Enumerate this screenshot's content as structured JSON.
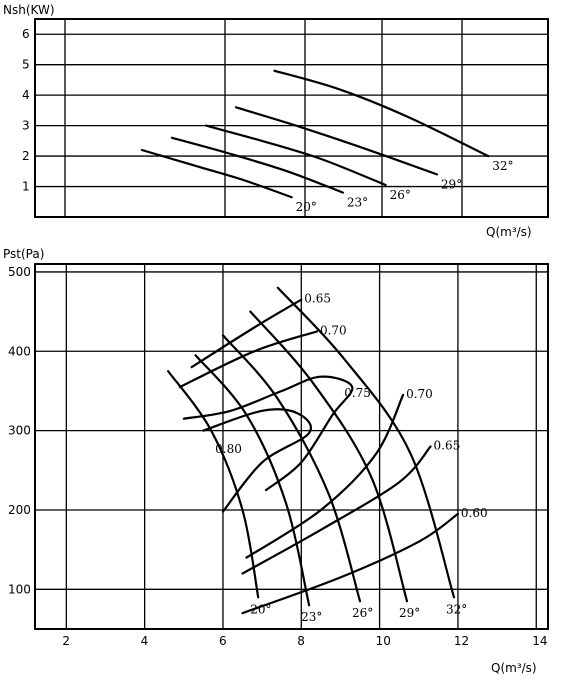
{
  "chart_data": [
    {
      "type": "line",
      "title": "",
      "ylabel": "Nsh(KW)",
      "xlabel": "Q(m³/s)",
      "xlim": [
        2,
        14
      ],
      "ylim": [
        0,
        6.5
      ],
      "x_ticks": [],
      "y_ticks": [
        "1",
        "2",
        "3",
        "4",
        "5",
        "6"
      ],
      "grid": true,
      "series": [
        {
          "name": "20°",
          "points": [
            [
              3.8,
              2.2
            ],
            [
              5.0,
              1.7
            ],
            [
              6.2,
              1.2
            ],
            [
              7.3,
              0.65
            ]
          ]
        },
        {
          "name": "23°",
          "points": [
            [
              4.5,
              2.6
            ],
            [
              5.8,
              2.1
            ],
            [
              7.2,
              1.5
            ],
            [
              8.5,
              0.8
            ]
          ]
        },
        {
          "name": "26°",
          "points": [
            [
              5.3,
              3.0
            ],
            [
              6.6,
              2.5
            ],
            [
              8.0,
              1.9
            ],
            [
              9.5,
              1.05
            ]
          ]
        },
        {
          "name": "29°",
          "points": [
            [
              6.0,
              3.6
            ],
            [
              7.4,
              3.0
            ],
            [
              8.9,
              2.3
            ],
            [
              10.7,
              1.4
            ]
          ]
        },
        {
          "name": "32°",
          "points": [
            [
              6.9,
              4.8
            ],
            [
              8.4,
              4.2
            ],
            [
              10.0,
              3.3
            ],
            [
              11.9,
              2.0
            ]
          ]
        }
      ]
    },
    {
      "type": "line",
      "title": "",
      "ylabel": "Pst(Pa)",
      "xlabel": "Q(m³/s)",
      "xlim": [
        1.2,
        14.3
      ],
      "ylim": [
        50,
        510
      ],
      "x_ticks": [
        "2",
        "4",
        "6",
        "8",
        "10",
        "12",
        "14"
      ],
      "y_ticks": [
        "100",
        "200",
        "300",
        "400",
        "500"
      ],
      "grid": true,
      "blade_curves": [
        {
          "name": "20°",
          "points": [
            [
              4.6,
              375
            ],
            [
              5.7,
              300
            ],
            [
              6.5,
              200
            ],
            [
              6.9,
              90
            ]
          ]
        },
        {
          "name": "23°",
          "points": [
            [
              5.3,
              395
            ],
            [
              6.6,
              320
            ],
            [
              7.6,
              210
            ],
            [
              8.2,
              80
            ]
          ]
        },
        {
          "name": "26°",
          "points": [
            [
              6.0,
              420
            ],
            [
              7.4,
              340
            ],
            [
              8.7,
              220
            ],
            [
              9.5,
              85
            ]
          ]
        },
        {
          "name": "29°",
          "points": [
            [
              6.7,
              450
            ],
            [
              8.3,
              360
            ],
            [
              9.8,
              240
            ],
            [
              10.7,
              85
            ]
          ]
        },
        {
          "name": "32°",
          "points": [
            [
              7.4,
              480
            ],
            [
              9.1,
              390
            ],
            [
              10.8,
              270
            ],
            [
              11.9,
              90
            ]
          ]
        }
      ],
      "efficiency_curves": [
        {
          "name": "0.65",
          "points": [
            [
              5.2,
              380
            ],
            [
              6.8,
              430
            ],
            [
              8.0,
              465
            ]
          ]
        },
        {
          "name": "0.70",
          "points": [
            [
              4.9,
              355
            ],
            [
              6.8,
              400
            ],
            [
              8.4,
              425
            ]
          ]
        },
        {
          "name": "0.75",
          "points": [
            [
              7.1,
              225
            ],
            [
              8.0,
              260
            ],
            [
              8.8,
              320
            ],
            [
              9.3,
              355
            ],
            [
              8.5,
              368
            ],
            [
              7.5,
              350
            ],
            [
              6.2,
              325
            ],
            [
              5.0,
              315
            ]
          ]
        },
        {
          "name": "0.80",
          "points": [
            [
              5.5,
              300
            ],
            [
              7.0,
              325
            ],
            [
              7.9,
              322
            ],
            [
              8.2,
              297
            ],
            [
              7.0,
              260
            ],
            [
              6.0,
              198
            ]
          ]
        },
        {
          "name": "0.70",
          "points": [
            [
              6.6,
              140
            ],
            [
              8.5,
              200
            ],
            [
              9.9,
              270
            ],
            [
              10.6,
              345
            ]
          ]
        },
        {
          "name": "0.65",
          "points": [
            [
              6.5,
              120
            ],
            [
              8.5,
              175
            ],
            [
              10.5,
              235
            ],
            [
              11.3,
              280
            ]
          ]
        },
        {
          "name": "0.60",
          "points": [
            [
              6.5,
              70
            ],
            [
              9.0,
              115
            ],
            [
              11.0,
              160
            ],
            [
              12.0,
              195
            ]
          ]
        }
      ]
    }
  ]
}
